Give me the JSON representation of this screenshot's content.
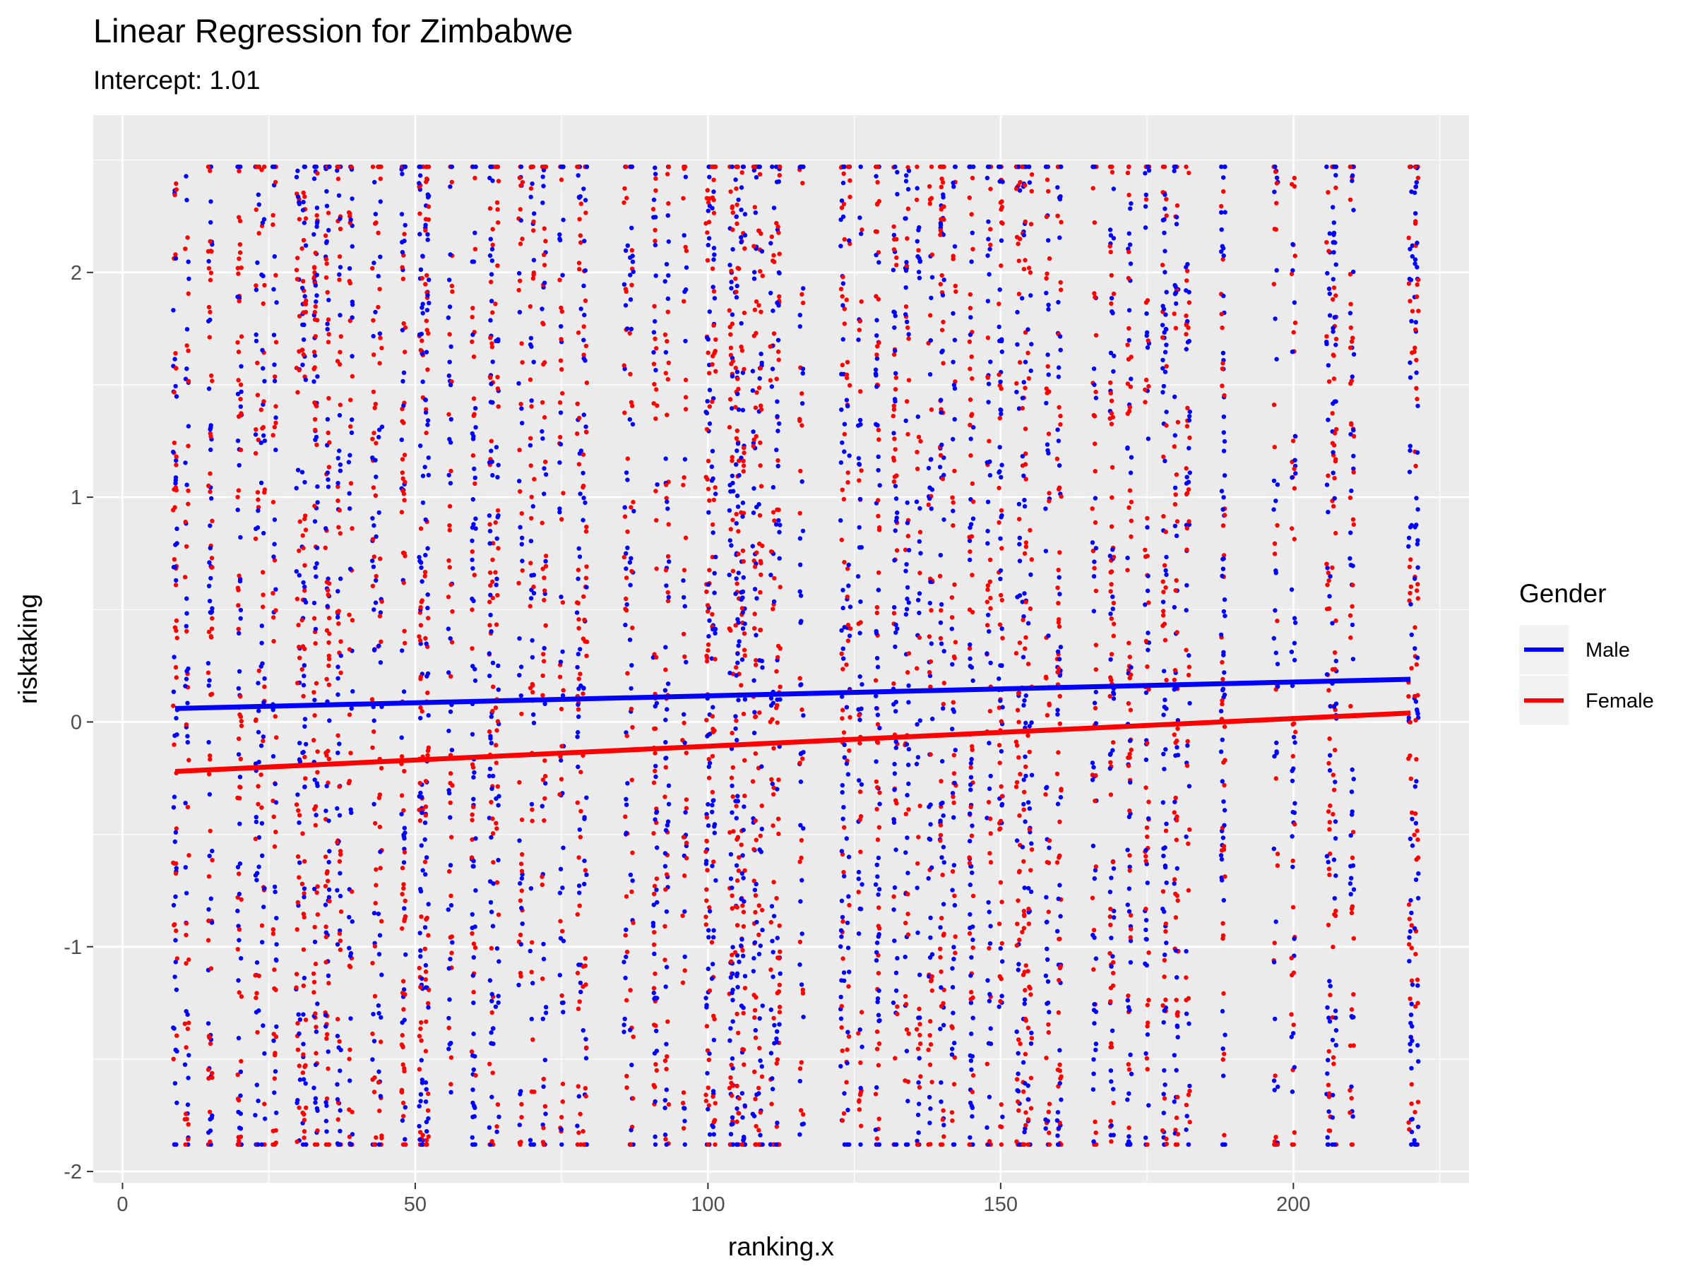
{
  "chart_data": {
    "type": "scatter",
    "title": "Linear Regression for Zimbabwe",
    "subtitle": "Intercept: 1.01",
    "xlabel": "ranking.x",
    "ylabel": "risktaking",
    "xlim": [
      -5,
      230
    ],
    "ylim": [
      -2.05,
      2.7
    ],
    "x_ticks": [
      0,
      50,
      100,
      150,
      200
    ],
    "y_ticks": [
      -2,
      -1,
      0,
      1,
      2
    ],
    "grid": true,
    "legend": {
      "title": "Gender",
      "placement": "right"
    },
    "point_range": {
      "y_min": -1.88,
      "y_max": 2.47
    },
    "point_columns_x": [
      9,
      11,
      15,
      20,
      23,
      24,
      26,
      30,
      31,
      33,
      35,
      37,
      39,
      43,
      44,
      48,
      51,
      52,
      56,
      60,
      63,
      64,
      68,
      70,
      72,
      75,
      78,
      79,
      86,
      87,
      91,
      93,
      96,
      100,
      101,
      104,
      105,
      106,
      108,
      109,
      111,
      112,
      116,
      123,
      124,
      126,
      129,
      132,
      134,
      136,
      138,
      140,
      142,
      145,
      148,
      150,
      153,
      154,
      155,
      158,
      160,
      166,
      169,
      172,
      175,
      178,
      180,
      182,
      188,
      197,
      200,
      206,
      207,
      210,
      220,
      221
    ],
    "series": [
      {
        "name": "Male",
        "color": "#0000ff",
        "line": {
          "x": [
            9,
            220
          ],
          "y": [
            0.06,
            0.19
          ]
        }
      },
      {
        "name": "Female",
        "color": "#ff0000",
        "line": {
          "x": [
            9,
            220
          ],
          "y": [
            -0.22,
            0.04
          ]
        }
      }
    ]
  }
}
